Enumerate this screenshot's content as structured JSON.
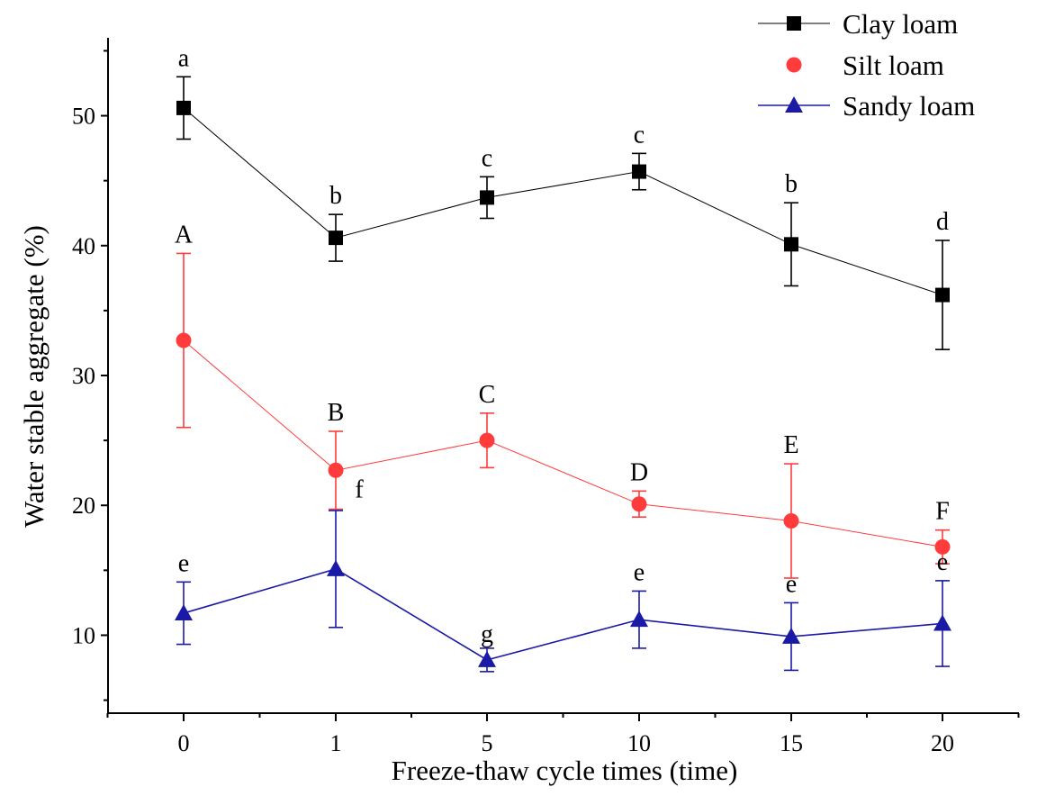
{
  "chart_data": {
    "type": "line",
    "title": "",
    "xlabel": "Freeze-thaw cycle times (time)",
    "ylabel": "Water stable aggregate (%)",
    "categories": [
      "0",
      "1",
      "5",
      "10",
      "15",
      "20"
    ],
    "ylim": [
      4,
      56
    ],
    "yticks": [
      10,
      20,
      30,
      40,
      50
    ],
    "grid": false,
    "legend_position": "top-right",
    "series": [
      {
        "name": "Clay loam",
        "color": "#000000",
        "marker": "square",
        "values": [
          50.6,
          40.6,
          43.7,
          45.7,
          40.1,
          36.2
        ],
        "errors": [
          2.4,
          1.8,
          1.6,
          1.4,
          3.2,
          4.2
        ],
        "letters": [
          "a",
          "b",
          "c",
          "c",
          "b",
          "d"
        ]
      },
      {
        "name": "Silt loam",
        "color": "#ff3b3b",
        "marker": "circle",
        "values": [
          32.7,
          22.7,
          25.0,
          20.1,
          18.8,
          16.8
        ],
        "errors": [
          6.7,
          3.0,
          2.1,
          1.0,
          4.4,
          1.3
        ],
        "letters": [
          "A",
          "B",
          "C",
          "D",
          "E",
          "F"
        ]
      },
      {
        "name": "Sandy loam",
        "color": "#1a1aa6",
        "marker": "triangle",
        "values": [
          11.7,
          15.1,
          8.1,
          11.2,
          9.9,
          10.9
        ],
        "errors": [
          2.4,
          4.5,
          0.9,
          2.2,
          2.6,
          3.3
        ],
        "letters": [
          "e",
          "f",
          "g",
          "e",
          "e",
          "e"
        ]
      }
    ]
  }
}
